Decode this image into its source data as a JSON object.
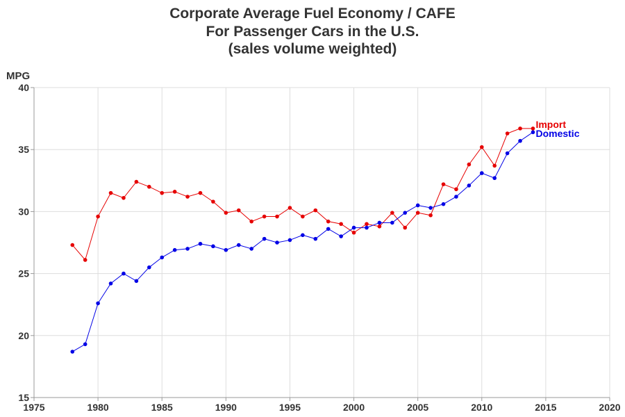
{
  "chart_data": {
    "type": "line",
    "title": [
      "Corporate Average Fuel Economy / CAFE",
      "For Passenger Cars in the U.S.",
      "(sales volume weighted)"
    ],
    "ylabel": "MPG",
    "xlabel": "",
    "xlim": [
      1975,
      2020
    ],
    "ylim": [
      15,
      40
    ],
    "xticks": [
      1975,
      1980,
      1985,
      1990,
      1995,
      2000,
      2005,
      2010,
      2015,
      2020
    ],
    "yticks": [
      15,
      20,
      25,
      30,
      35,
      40
    ],
    "grid": true,
    "legend": "none (series labeled at line ends)",
    "x": [
      1978,
      1979,
      1980,
      1981,
      1982,
      1983,
      1984,
      1985,
      1986,
      1987,
      1988,
      1989,
      1990,
      1991,
      1992,
      1993,
      1994,
      1995,
      1996,
      1997,
      1998,
      1999,
      2000,
      2001,
      2002,
      2003,
      2004,
      2005,
      2006,
      2007,
      2008,
      2009,
      2010,
      2011,
      2012,
      2013,
      2014
    ],
    "series": [
      {
        "name": "Import",
        "color": "#e60000",
        "values": [
          27.3,
          26.1,
          29.6,
          31.5,
          31.1,
          32.4,
          32.0,
          31.5,
          31.6,
          31.2,
          31.5,
          30.8,
          29.9,
          30.1,
          29.2,
          29.6,
          29.6,
          30.3,
          29.6,
          30.1,
          29.2,
          29.0,
          28.3,
          29.0,
          28.8,
          29.9,
          28.7,
          29.9,
          29.7,
          32.2,
          31.8,
          33.8,
          35.2,
          33.7,
          36.3,
          36.7,
          36.7
        ]
      },
      {
        "name": "Domestic",
        "color": "#0000e6",
        "values": [
          18.7,
          19.3,
          22.6,
          24.2,
          25.0,
          24.4,
          25.5,
          26.3,
          26.9,
          27.0,
          27.4,
          27.2,
          26.9,
          27.3,
          27.0,
          27.8,
          27.5,
          27.7,
          28.1,
          27.8,
          28.6,
          28.0,
          28.7,
          28.7,
          29.1,
          29.1,
          29.9,
          30.5,
          30.3,
          30.6,
          31.2,
          32.1,
          33.1,
          32.7,
          34.7,
          35.7,
          36.4
        ]
      }
    ]
  }
}
